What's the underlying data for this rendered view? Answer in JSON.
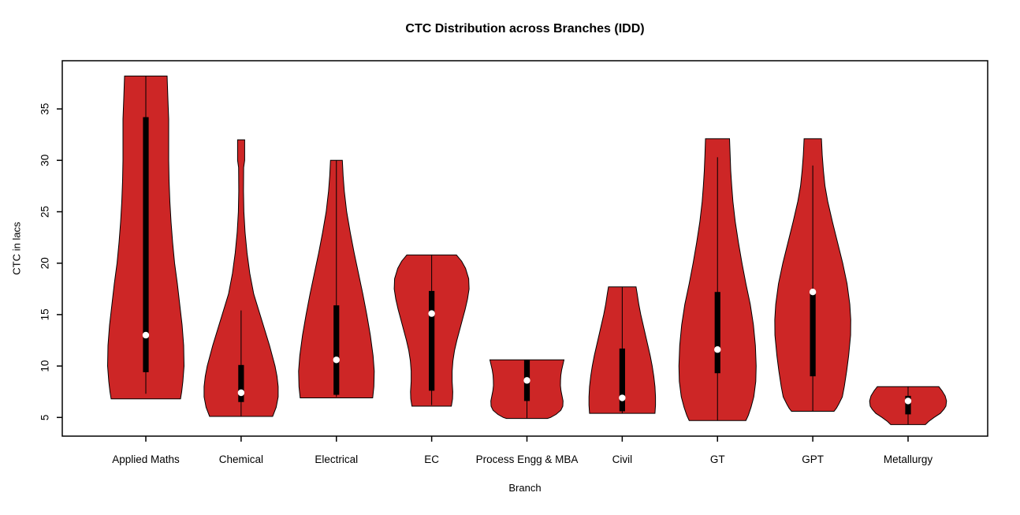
{
  "chart_data": {
    "type": "violin",
    "title": "CTC Distribution across Branches (IDD)",
    "xlabel": "Branch",
    "ylabel": "CTC in lacs",
    "y_ticks": [
      5,
      10,
      15,
      20,
      25,
      30,
      35
    ],
    "y_range": [
      3.2,
      39.7
    ],
    "grid": false,
    "legend": "none",
    "colors": {
      "violin_fill": "#CD2626",
      "violin_stroke": "#000000",
      "box": "#000000",
      "median_dot": "#ffffff",
      "background": "#ffffff"
    },
    "categories": [
      "Applied Maths",
      "Chemical",
      "Electrical",
      "EC",
      "Process Engg & MBA",
      "Civil",
      "GT",
      "GPT",
      "Metallurgy"
    ],
    "violins": [
      {
        "label": "Applied Maths",
        "min": 6.8,
        "max": 38.2,
        "q1": 9.4,
        "q3": 34.2,
        "median": 13.0,
        "whisker_low": 7.3,
        "whisker_high": 38.2,
        "outline": [
          [
            38.2,
            27
          ],
          [
            36,
            28
          ],
          [
            34,
            29
          ],
          [
            32,
            29
          ],
          [
            30,
            29
          ],
          [
            28,
            29.5
          ],
          [
            26,
            30.5
          ],
          [
            24,
            32
          ],
          [
            22,
            34
          ],
          [
            20,
            36.5
          ],
          [
            18,
            40
          ],
          [
            16,
            43
          ],
          [
            14,
            46
          ],
          [
            12,
            48
          ],
          [
            10,
            48.5
          ],
          [
            8.5,
            47
          ],
          [
            7.5,
            45.5
          ],
          [
            6.8,
            44
          ]
        ]
      },
      {
        "label": "Chemical",
        "min": 5.1,
        "max": 32.0,
        "q1": 6.5,
        "q3": 10.1,
        "median": 7.4,
        "whisker_low": 5.1,
        "whisker_high": 15.4,
        "outline": [
          [
            32,
            4.5
          ],
          [
            30,
            4.5
          ],
          [
            29.3,
            3.2
          ],
          [
            27,
            3
          ],
          [
            25,
            3.5
          ],
          [
            23,
            5
          ],
          [
            21,
            7.5
          ],
          [
            19,
            11
          ],
          [
            17,
            16
          ],
          [
            15.5,
            22
          ],
          [
            14,
            28
          ],
          [
            12,
            36
          ],
          [
            10,
            43
          ],
          [
            9,
            45.5
          ],
          [
            8,
            47
          ],
          [
            7,
            47
          ],
          [
            6,
            44.5
          ],
          [
            5.1,
            40
          ]
        ]
      },
      {
        "label": "Electrical",
        "min": 6.9,
        "max": 30.0,
        "q1": 7.2,
        "q3": 15.9,
        "median": 10.6,
        "whisker_low": 7.0,
        "whisker_high": 30.0,
        "outline": [
          [
            30,
            7.5
          ],
          [
            28.5,
            8.5
          ],
          [
            27,
            10
          ],
          [
            25,
            13
          ],
          [
            23,
            17.5
          ],
          [
            21,
            22.5
          ],
          [
            19,
            28
          ],
          [
            17,
            33.5
          ],
          [
            15,
            38.5
          ],
          [
            13,
            43
          ],
          [
            11,
            46.5
          ],
          [
            9.5,
            48
          ],
          [
            8,
            47.5
          ],
          [
            6.9,
            46
          ]
        ]
      },
      {
        "label": "EC",
        "min": 6.1,
        "max": 20.8,
        "q1": 7.6,
        "q3": 17.3,
        "median": 15.1,
        "whisker_low": 6.2,
        "whisker_high": 20.8,
        "outline": [
          [
            20.8,
            31.5
          ],
          [
            20.2,
            38
          ],
          [
            19.5,
            43
          ],
          [
            18.5,
            47
          ],
          [
            17.5,
            47.5
          ],
          [
            16.5,
            45.5
          ],
          [
            15.5,
            42.5
          ],
          [
            14.5,
            39
          ],
          [
            13.5,
            35.5
          ],
          [
            12.5,
            32
          ],
          [
            11.5,
            29
          ],
          [
            10.5,
            27
          ],
          [
            9.5,
            26
          ],
          [
            8.5,
            26
          ],
          [
            7.5,
            26.8
          ],
          [
            6.8,
            26.5
          ],
          [
            6.1,
            25
          ]
        ]
      },
      {
        "label": "Process Engg & MBA",
        "min": 4.9,
        "max": 10.6,
        "q1": 6.6,
        "q3": 10.6,
        "median": 8.6,
        "whisker_low": 4.9,
        "whisker_high": 10.6,
        "outline": [
          [
            10.6,
            47
          ],
          [
            10.1,
            45.5
          ],
          [
            9.6,
            44
          ],
          [
            9.1,
            43
          ],
          [
            8.6,
            42.6
          ],
          [
            8.1,
            42.5
          ],
          [
            7.6,
            43.2
          ],
          [
            7.1,
            44.5
          ],
          [
            6.6,
            45.8
          ],
          [
            6.1,
            45.5
          ],
          [
            5.7,
            43
          ],
          [
            5.3,
            37
          ],
          [
            5.0,
            30
          ],
          [
            4.9,
            26
          ]
        ]
      },
      {
        "label": "Civil",
        "min": 5.4,
        "max": 17.7,
        "q1": 5.6,
        "q3": 11.7,
        "median": 6.9,
        "whisker_low": 5.4,
        "whisker_high": 17.7,
        "outline": [
          [
            17.7,
            17.5
          ],
          [
            17,
            19
          ],
          [
            16,
            21
          ],
          [
            15,
            23.5
          ],
          [
            14,
            26.5
          ],
          [
            13,
            29.5
          ],
          [
            12,
            32.5
          ],
          [
            11,
            35.5
          ],
          [
            10,
            38
          ],
          [
            9,
            40
          ],
          [
            8,
            41.5
          ],
          [
            7,
            42.2
          ],
          [
            6.2,
            42.2
          ],
          [
            5.4,
            41.5
          ]
        ]
      },
      {
        "label": "GT",
        "min": 4.7,
        "max": 32.1,
        "q1": 9.3,
        "q3": 17.2,
        "median": 11.6,
        "whisker_low": 4.7,
        "whisker_high": 30.3,
        "outline": [
          [
            32.1,
            15.3
          ],
          [
            30.5,
            16
          ],
          [
            29,
            16.8
          ],
          [
            27.5,
            18
          ],
          [
            26,
            19.5
          ],
          [
            24,
            22.5
          ],
          [
            22,
            26.5
          ],
          [
            20,
            31
          ],
          [
            18,
            36
          ],
          [
            16,
            41.5
          ],
          [
            14,
            45.5
          ],
          [
            12,
            48
          ],
          [
            10,
            49
          ],
          [
            8.5,
            48.5
          ],
          [
            7,
            46
          ],
          [
            6,
            42.5
          ],
          [
            5.2,
            39
          ],
          [
            4.7,
            36
          ]
        ]
      },
      {
        "label": "GPT",
        "min": 5.6,
        "max": 32.1,
        "q1": 9.0,
        "q3": 17.2,
        "median": 17.2,
        "whisker_low": 5.6,
        "whisker_high": 29.5,
        "outline": [
          [
            32.1,
            11
          ],
          [
            30.5,
            12
          ],
          [
            29,
            13.5
          ],
          [
            27.5,
            15.5
          ],
          [
            26,
            19
          ],
          [
            24,
            25
          ],
          [
            22,
            31.5
          ],
          [
            20,
            38
          ],
          [
            18,
            43.5
          ],
          [
            16,
            47
          ],
          [
            14.5,
            48.2
          ],
          [
            13,
            48
          ],
          [
            11,
            45.5
          ],
          [
            9.5,
            43
          ],
          [
            8,
            40
          ],
          [
            7,
            37.5
          ],
          [
            6.3,
            33
          ],
          [
            5.9,
            30
          ],
          [
            5.6,
            27
          ]
        ]
      },
      {
        "label": "Metallurgy",
        "min": 4.3,
        "max": 8.0,
        "q1": 5.3,
        "q3": 7.1,
        "median": 6.6,
        "whisker_low": 4.3,
        "whisker_high": 8.0,
        "outline": [
          [
            8.0,
            39
          ],
          [
            7.6,
            43
          ],
          [
            7.1,
            47
          ],
          [
            6.6,
            48.8
          ],
          [
            6.1,
            48
          ],
          [
            5.8,
            45.5
          ],
          [
            5.4,
            41
          ],
          [
            5.0,
            33
          ],
          [
            4.6,
            26
          ],
          [
            4.3,
            22
          ]
        ]
      }
    ]
  }
}
